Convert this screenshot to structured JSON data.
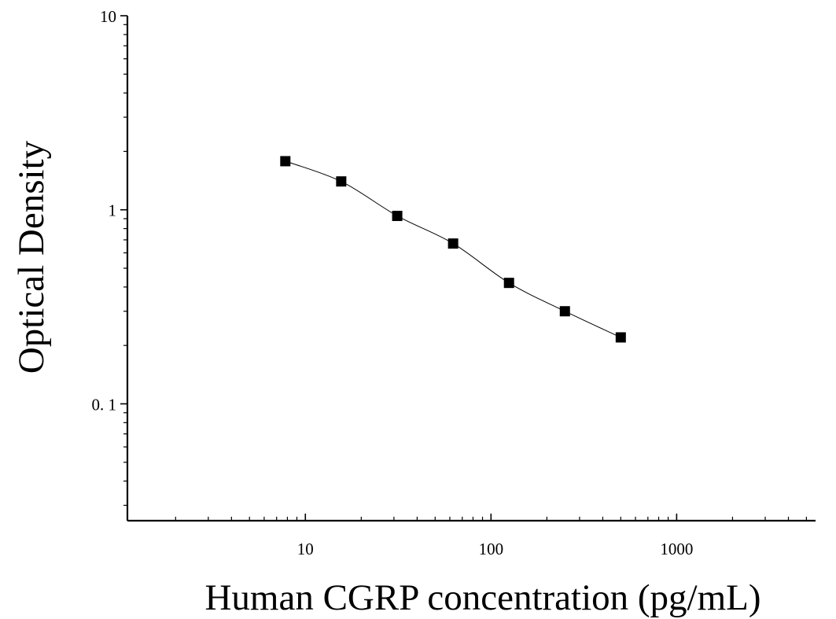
{
  "chart_data": {
    "type": "scatter",
    "xlabel": "Human CGRP concentration (pg/mL)",
    "ylabel": "Optical Density",
    "xscale": "log",
    "yscale": "log",
    "xlim": [
      1.1,
      5600
    ],
    "ylim": [
      0.025,
      10
    ],
    "x_ticks": [
      10,
      100,
      1000
    ],
    "x_tick_labels": [
      "10",
      "100",
      "1000"
    ],
    "y_ticks": [
      10,
      1,
      0.1
    ],
    "y_tick_labels": [
      "10",
      "1",
      "0. 1"
    ],
    "grid": false,
    "legend": "none",
    "marker": "square",
    "marker_color": "#000000",
    "series": [
      {
        "x": [
          7.8,
          15.6,
          31.25,
          62.5,
          125,
          250,
          500
        ],
        "y": [
          1.78,
          1.4,
          0.93,
          0.67,
          0.42,
          0.3,
          0.22
        ]
      }
    ],
    "fit_curve": true
  }
}
